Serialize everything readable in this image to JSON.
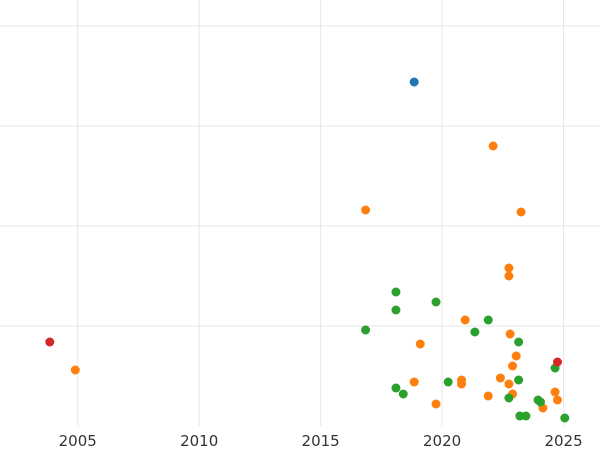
{
  "chart_data": {
    "type": "scatter",
    "title": "",
    "xlabel": "",
    "ylabel": "",
    "xlim": [
      2001.8,
      2026.5
    ],
    "ylim": [
      0,
      213
    ],
    "x_ticks": [
      2005,
      2010,
      2015,
      2020,
      2025
    ],
    "x_tick_labels": [
      "2005",
      "2010",
      "2015",
      "2020",
      "2025"
    ],
    "y_gridlines": [
      50,
      100,
      150,
      200
    ],
    "grid": true,
    "legend": "none",
    "series": [
      {
        "color": "#1f77b4",
        "points": [
          {
            "x": 2018.85,
            "y": 172
          }
        ]
      },
      {
        "color": "#ff7f0e",
        "points": [
          {
            "x": 2004.9,
            "y": 28
          },
          {
            "x": 2016.85,
            "y": 108
          },
          {
            "x": 2018.85,
            "y": 22
          },
          {
            "x": 2019.1,
            "y": 41
          },
          {
            "x": 2019.75,
            "y": 11
          },
          {
            "x": 2020.8,
            "y": 21
          },
          {
            "x": 2020.8,
            "y": 23
          },
          {
            "x": 2020.95,
            "y": 53
          },
          {
            "x": 2021.9,
            "y": 15
          },
          {
            "x": 2022.1,
            "y": 140
          },
          {
            "x": 2022.4,
            "y": 24
          },
          {
            "x": 2022.75,
            "y": 79
          },
          {
            "x": 2022.75,
            "y": 75
          },
          {
            "x": 2022.75,
            "y": 21
          },
          {
            "x": 2022.8,
            "y": 46
          },
          {
            "x": 2022.9,
            "y": 16
          },
          {
            "x": 2022.9,
            "y": 30
          },
          {
            "x": 2023.05,
            "y": 35
          },
          {
            "x": 2023.25,
            "y": 107
          },
          {
            "x": 2024.15,
            "y": 9
          },
          {
            "x": 2024.65,
            "y": 17
          },
          {
            "x": 2024.75,
            "y": 13
          }
        ]
      },
      {
        "color": "#2ca02c",
        "points": [
          {
            "x": 2016.85,
            "y": 48
          },
          {
            "x": 2018.1,
            "y": 67
          },
          {
            "x": 2018.1,
            "y": 58
          },
          {
            "x": 2018.1,
            "y": 19
          },
          {
            "x": 2018.4,
            "y": 16
          },
          {
            "x": 2019.75,
            "y": 62
          },
          {
            "x": 2020.25,
            "y": 22
          },
          {
            "x": 2021.35,
            "y": 47
          },
          {
            "x": 2021.9,
            "y": 53
          },
          {
            "x": 2022.75,
            "y": 14
          },
          {
            "x": 2023.15,
            "y": 42
          },
          {
            "x": 2023.15,
            "y": 23
          },
          {
            "x": 2023.2,
            "y": 5
          },
          {
            "x": 2023.45,
            "y": 5
          },
          {
            "x": 2023.95,
            "y": 13
          },
          {
            "x": 2024.05,
            "y": 12
          },
          {
            "x": 2024.65,
            "y": 29
          },
          {
            "x": 2025.05,
            "y": 4
          }
        ]
      },
      {
        "color": "#d62728",
        "points": [
          {
            "x": 2003.85,
            "y": 42
          },
          {
            "x": 2024.75,
            "y": 32
          }
        ]
      }
    ]
  }
}
